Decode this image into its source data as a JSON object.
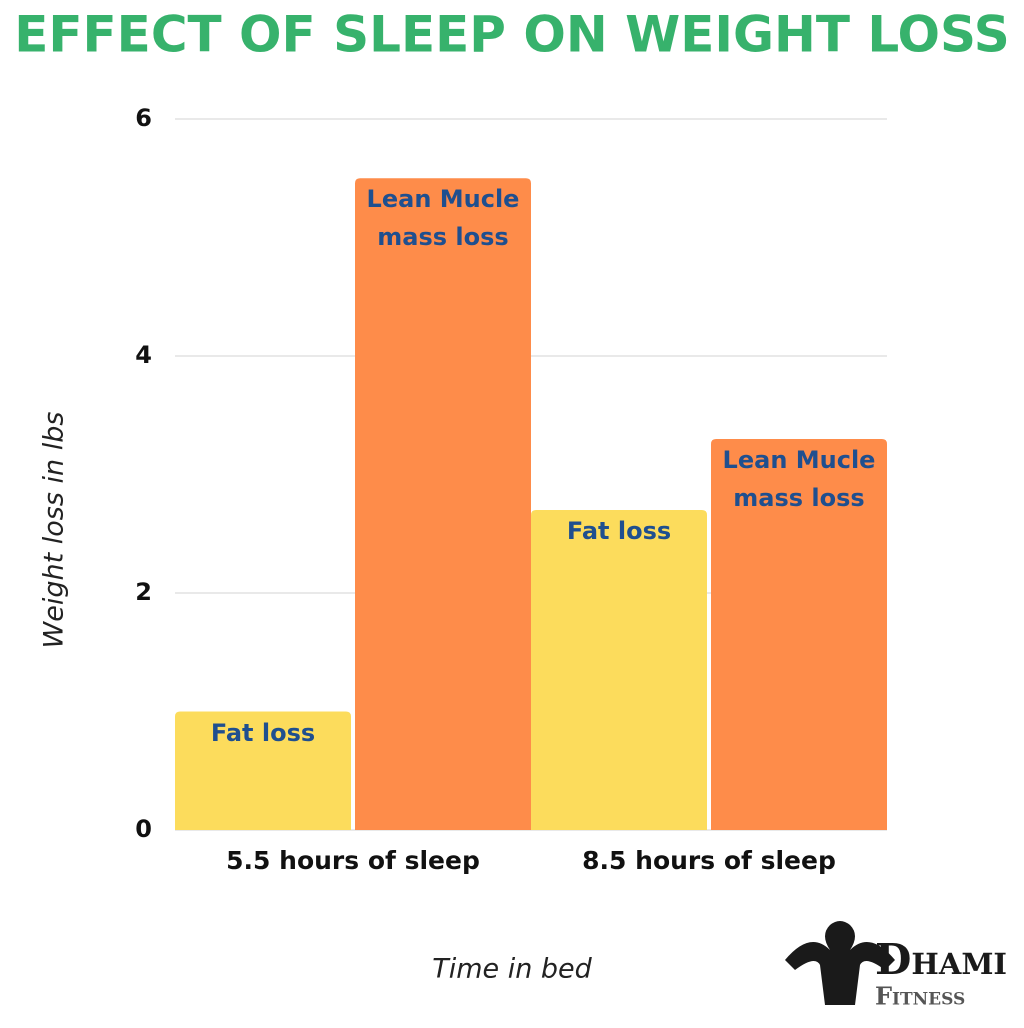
{
  "chart_data": {
    "type": "bar",
    "title": "EFFECT OF SLEEP ON WEIGHT LOSS",
    "x_label": "Time in bed",
    "y_label": "Weight loss in lbs",
    "categories": [
      "5.5 hours of sleep",
      "8.5 hours of sleep"
    ],
    "series": [
      {
        "name": "Fat loss",
        "color": "#fcdc5c",
        "values": [
          1.0,
          2.7
        ]
      },
      {
        "name": "Lean Mucle mass loss",
        "color": "#fe8c4a",
        "values": [
          5.5,
          3.3
        ]
      }
    ],
    "ylim": [
      0,
      6
    ],
    "yticks": [
      0,
      2,
      4,
      6
    ],
    "grid": true,
    "logo": [
      "Dhami",
      "Fitness"
    ]
  }
}
